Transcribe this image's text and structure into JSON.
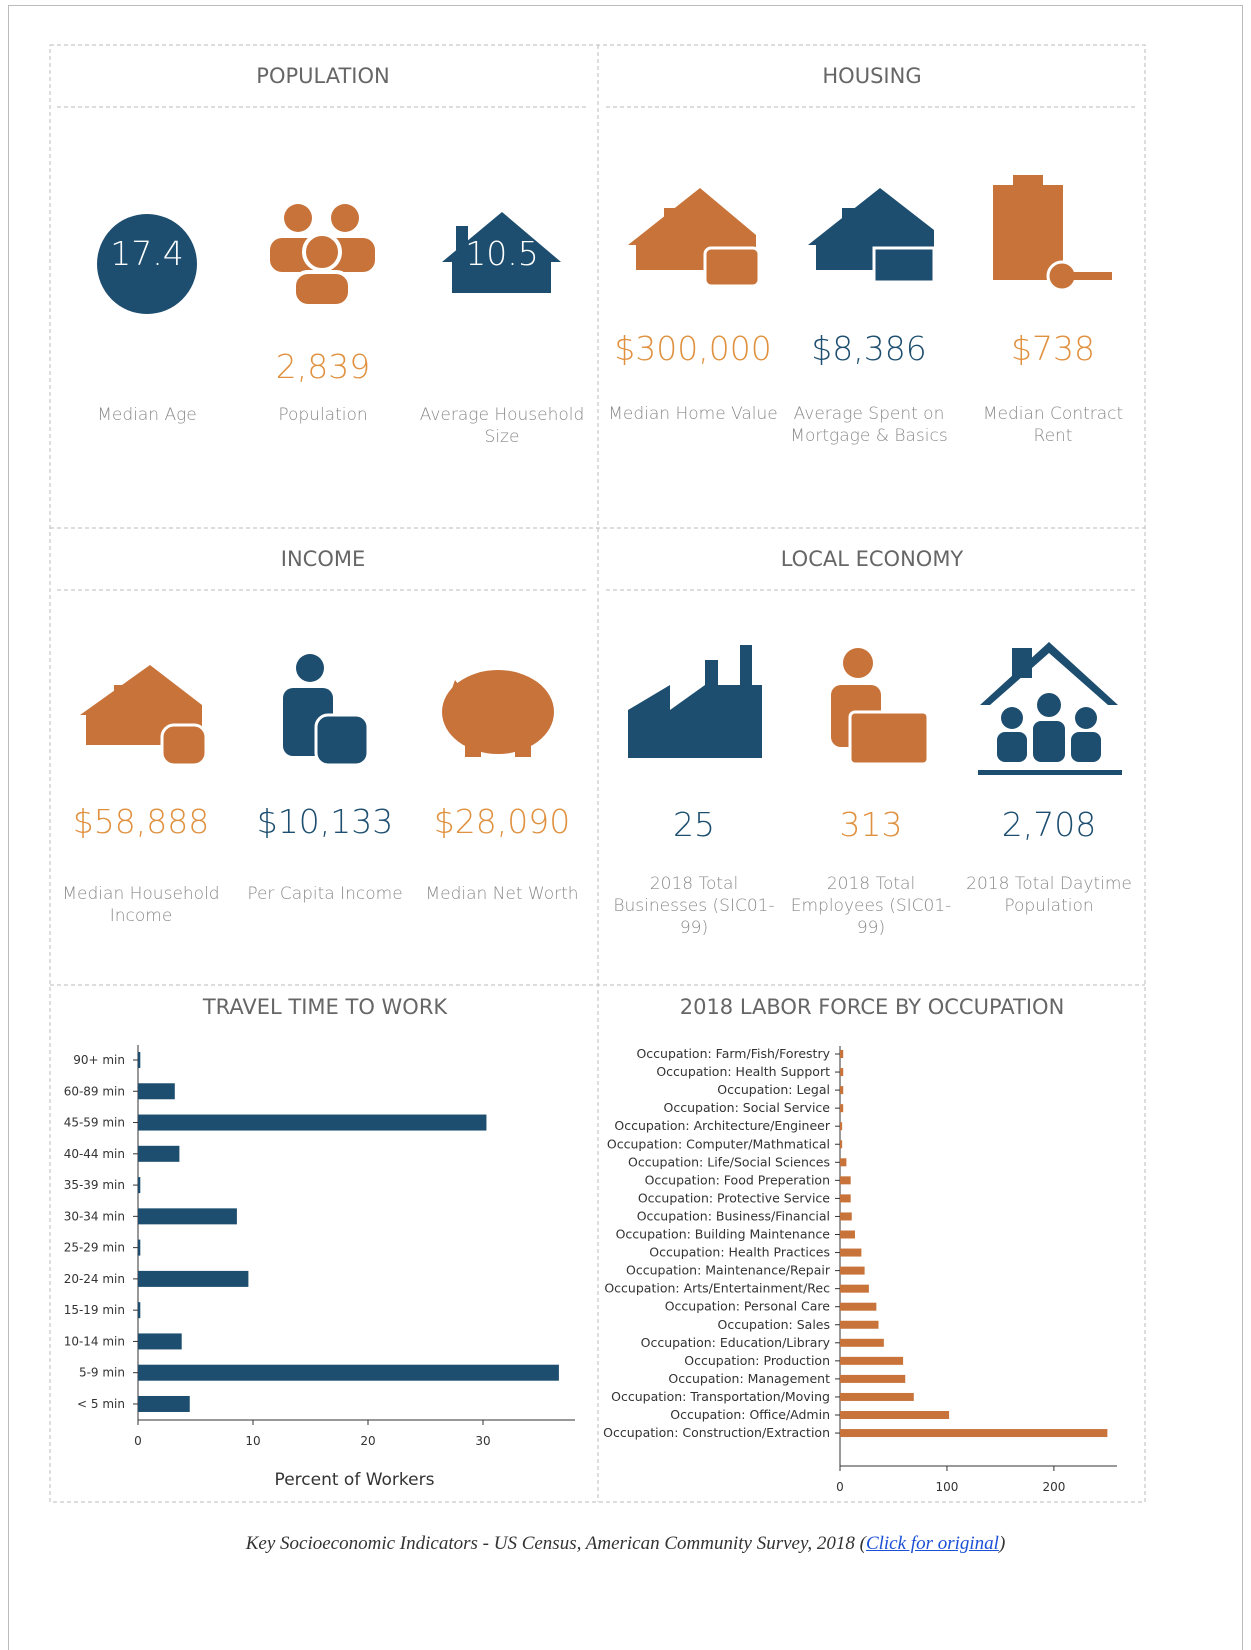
{
  "sections": [
    {
      "title": "POPULATION",
      "items": [
        {
          "value": "17.4",
          "label": "Median Age"
        },
        {
          "value": "2,839",
          "label": "Population"
        },
        {
          "value": "10.5",
          "label": "Average Household Size"
        }
      ]
    },
    {
      "title": "HOUSING",
      "items": [
        {
          "value": "$300,000",
          "label": "Median Home Value"
        },
        {
          "value": "$8,386",
          "label": "Average Spent on Mortgage & Basics"
        },
        {
          "value": "$738",
          "label": "Median Contract Rent"
        }
      ]
    },
    {
      "title": "INCOME",
      "items": [
        {
          "value": "$58,888",
          "label": "Median Household Income"
        },
        {
          "value": "$10,133",
          "label": "Per Capita Income"
        },
        {
          "value": "$28,090",
          "label": "Median Net Worth"
        }
      ]
    },
    {
      "title": "LOCAL ECONOMY",
      "items": [
        {
          "value": "25",
          "label": "2018 Total Businesses (SIC01-99)"
        },
        {
          "value": "313",
          "label": "2018 Total Employees (SIC01-99)"
        },
        {
          "value": "2,708",
          "label": "2018 Total Daytime Population"
        }
      ]
    }
  ],
  "chart_data": [
    {
      "type": "bar",
      "orientation": "horizontal",
      "title": "TRAVEL TIME TO WORK",
      "xlabel": "Percent of Workers",
      "color": "#1d4e6f",
      "categories": [
        "90+ min",
        "60-89 min",
        "45-59 min",
        "40-44 min",
        "35-39 min",
        "30-34 min",
        "25-29 min",
        "20-24 min",
        "15-19 min",
        "10-14 min",
        "5-9 min",
        "< 5 min"
      ],
      "values": [
        0.2,
        3.2,
        30.3,
        3.6,
        0.2,
        8.6,
        0.2,
        9.6,
        0.2,
        3.8,
        36.6,
        4.5
      ],
      "xlim": [
        0,
        38
      ],
      "xticks": [
        0,
        10,
        20,
        30
      ]
    },
    {
      "type": "bar",
      "orientation": "horizontal",
      "title": "2018 LABOR FORCE BY OCCUPATION",
      "color": "#c8733a",
      "categories": [
        "Occupation: Farm/Fish/Forestry",
        "Occupation: Health Support",
        "Occupation: Legal",
        "Occupation: Social Service",
        "Occupation: Architecture/Engineer",
        "Occupation: Computer/Mathmatical",
        "Occupation: Life/Social Sciences",
        "Occupation: Food Preperation",
        "Occupation: Protective Service",
        "Occupation: Business/Financial",
        "Occupation: Building Maintenance",
        "Occupation: Health Practices",
        "Occupation: Maintenance/Repair",
        "Occupation: Arts/Entertainment/Rec",
        "Occupation: Personal Care",
        "Occupation: Sales",
        "Occupation: Education/Library",
        "Occupation: Production",
        "Occupation: Management",
        "Occupation: Transportation/Moving",
        "Occupation: Office/Admin",
        "Occupation: Construction/Extraction"
      ],
      "values": [
        3,
        3,
        3,
        3,
        2,
        2,
        6,
        10,
        10,
        11,
        14,
        20,
        23,
        27,
        34,
        36,
        41,
        59,
        61,
        69,
        102,
        250
      ],
      "xlim": [
        0,
        259
      ],
      "xticks": [
        0,
        100,
        200
      ]
    }
  ],
  "caption": {
    "text": "Key Socioeconomic Indicators - US Census, American Community Survey, 2018 (",
    "link": "Click for original",
    "close": ")"
  }
}
